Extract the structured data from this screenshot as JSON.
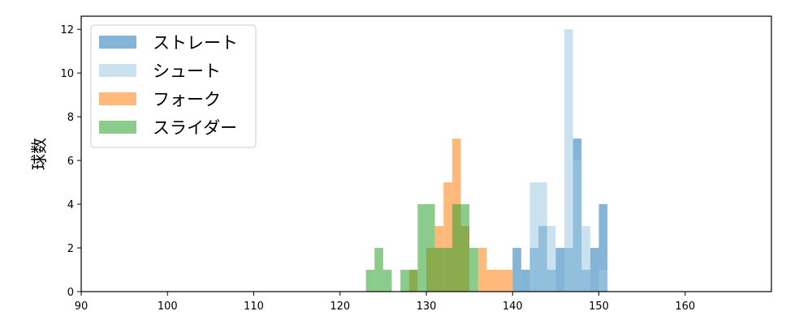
{
  "chart_data": {
    "type": "histogram",
    "ylabel": "球数",
    "xlabel": "",
    "title": "",
    "xlim": [
      90,
      170
    ],
    "ylim": [
      0,
      12.6
    ],
    "x_ticks": [
      "90",
      "100",
      "110",
      "120",
      "130",
      "140",
      "150",
      "160"
    ],
    "y_ticks": [
      "0",
      "2",
      "4",
      "6",
      "8",
      "10",
      "12"
    ],
    "bin_width": 1,
    "grid": false,
    "legend_position": "top-left",
    "series": [
      {
        "name": "ストレート",
        "color": "#1f77b4",
        "bins": [
          [
            140,
            2
          ],
          [
            141,
            1
          ],
          [
            142,
            2
          ],
          [
            143,
            3
          ],
          [
            144,
            1
          ],
          [
            145,
            2
          ],
          [
            146,
            2
          ],
          [
            147,
            7
          ],
          [
            148,
            1
          ],
          [
            149,
            2
          ],
          [
            150,
            4
          ]
        ]
      },
      {
        "name": "シュート",
        "color": "#9ecae1",
        "bins": [
          [
            142,
            5
          ],
          [
            143,
            5
          ],
          [
            144,
            3
          ],
          [
            146,
            12
          ],
          [
            147,
            6
          ],
          [
            148,
            3
          ],
          [
            150,
            1
          ]
        ]
      },
      {
        "name": "フォーク",
        "color": "#ff7f0e",
        "bins": [
          [
            128,
            1
          ],
          [
            130,
            2
          ],
          [
            131,
            3
          ],
          [
            132,
            5
          ],
          [
            133,
            7
          ],
          [
            134,
            3
          ],
          [
            136,
            2
          ],
          [
            137,
            1
          ],
          [
            138,
            1
          ],
          [
            139,
            1
          ]
        ]
      },
      {
        "name": "スライダー",
        "color": "#2ca02c",
        "bins": [
          [
            123,
            1
          ],
          [
            124,
            2
          ],
          [
            125,
            1
          ],
          [
            127,
            1
          ],
          [
            128,
            1
          ],
          [
            129,
            4
          ],
          [
            130,
            4
          ],
          [
            131,
            2
          ],
          [
            132,
            2
          ],
          [
            133,
            4
          ],
          [
            134,
            4
          ],
          [
            135,
            2
          ]
        ]
      }
    ]
  }
}
